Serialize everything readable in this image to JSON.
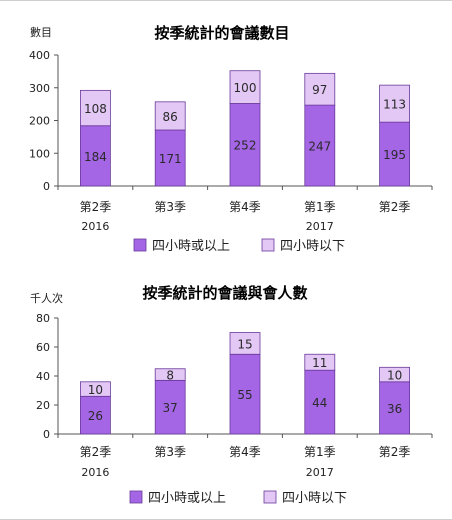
{
  "colors": {
    "lower": "#a566e6",
    "upper": "#e3c8f5",
    "border": "#6a3a9a",
    "axis": "#555555"
  },
  "chart_data": [
    {
      "type": "bar",
      "stacked": true,
      "title": "按季統計的會議數目",
      "ylabel": "數目",
      "ylim": [
        0,
        400
      ],
      "yticks": [
        0,
        100,
        200,
        300,
        400
      ],
      "categories": [
        "第2季",
        "第3季",
        "第4季",
        "第1季",
        "第2季"
      ],
      "year_labels": [
        {
          "label": "2016",
          "index": 0
        },
        {
          "label": "2017",
          "index": 3
        }
      ],
      "series": [
        {
          "name": "四小時或以上",
          "values": [
            184,
            171,
            252,
            247,
            195
          ]
        },
        {
          "name": "四小時以下",
          "values": [
            108,
            86,
            100,
            97,
            113
          ]
        }
      ],
      "legend": "bottom"
    },
    {
      "type": "bar",
      "stacked": true,
      "title": "按季統計的會議與會人數",
      "ylabel": "千人次",
      "ylim": [
        0,
        80
      ],
      "yticks": [
        0,
        20,
        40,
        60,
        80
      ],
      "categories": [
        "第2季",
        "第3季",
        "第4季",
        "第1季",
        "第2季"
      ],
      "year_labels": [
        {
          "label": "2016",
          "index": 0
        },
        {
          "label": "2017",
          "index": 3
        }
      ],
      "series": [
        {
          "name": "四小時或以上",
          "values": [
            26,
            37,
            55,
            44,
            36
          ]
        },
        {
          "name": "四小時以下",
          "values": [
            10,
            8,
            15,
            11,
            10
          ]
        }
      ],
      "legend": "bottom"
    }
  ]
}
